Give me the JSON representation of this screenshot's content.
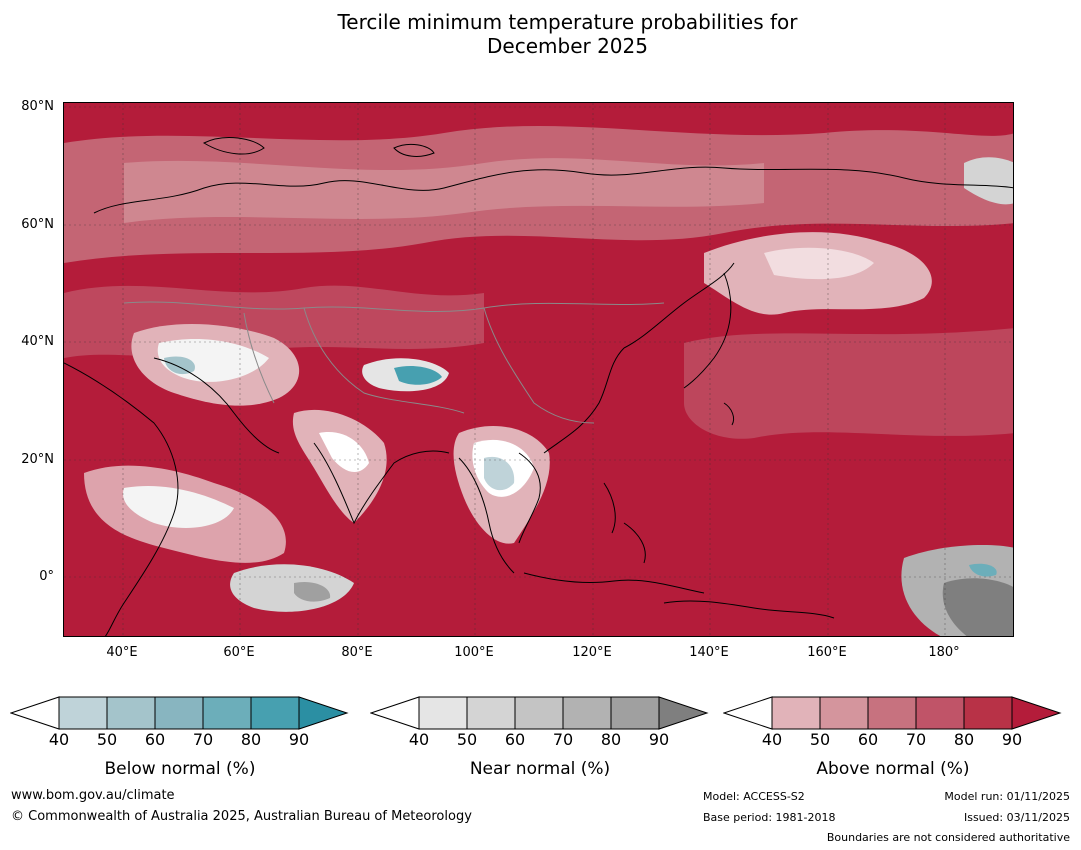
{
  "title": {
    "line1": "Tercile minimum temperature probabilities for",
    "line2": "December 2025"
  },
  "map": {
    "lat_labels": [
      "80°N",
      "60°N",
      "40°N",
      "20°N",
      "0°"
    ],
    "lon_labels": [
      "40°E",
      "60°E",
      "80°E",
      "100°E",
      "120°E",
      "140°E",
      "160°E",
      "180°"
    ],
    "dominant_color": "#b41c3a"
  },
  "legends": [
    {
      "title": "Below normal (%)",
      "ticks": [
        "40",
        "50",
        "60",
        "70",
        "80",
        "90"
      ],
      "colors": [
        "#ffffff",
        "#bfd3d9",
        "#a4c4cb",
        "#88b5c0",
        "#6caeba",
        "#47a0b0",
        "#2b8fa3"
      ]
    },
    {
      "title": "Near normal (%)",
      "ticks": [
        "40",
        "50",
        "60",
        "70",
        "80",
        "90"
      ],
      "colors": [
        "#ffffff",
        "#e5e5e5",
        "#d4d4d4",
        "#c4c4c4",
        "#b2b2b2",
        "#a0a0a0",
        "#7f7f7f"
      ]
    },
    {
      "title": "Above normal (%)",
      "ticks": [
        "40",
        "50",
        "60",
        "70",
        "80",
        "90"
      ],
      "colors": [
        "#ffffff",
        "#e1b3b9",
        "#d4959d",
        "#c7727f",
        "#c05468",
        "#b83247",
        "#b41c3a"
      ]
    }
  ],
  "footer": {
    "website": "www.bom.gov.au/climate",
    "copyright": "© Commonwealth of Australia 2025, Australian Bureau of Meteorology",
    "model": "Model: ACCESS-S2",
    "base_period": "Base period: 1981-2018",
    "model_run": "Model run: 01/11/2025",
    "issued": "Issued: 03/11/2025",
    "disclaimer": "Boundaries are not considered authoritative"
  }
}
